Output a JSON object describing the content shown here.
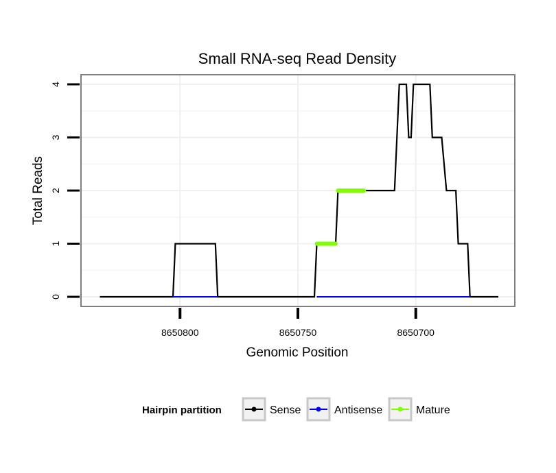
{
  "chart_data": {
    "type": "line",
    "title": "Small RNA-seq Read Density",
    "xlabel": "Genomic Position",
    "ylabel": "Total Reads",
    "xlim": [
      8650842,
      8650658
    ],
    "x_reversed": true,
    "ylim": [
      -0.18,
      4.18
    ],
    "x_ticks": [
      8650800,
      8650750,
      8650700
    ],
    "x_tick_labels": [
      "8650800",
      "8650750",
      "8650700"
    ],
    "y_ticks": [
      0,
      1,
      2,
      3,
      4
    ],
    "y_tick_labels": [
      "0",
      "1",
      "2",
      "3",
      "4"
    ],
    "grid": true,
    "legend": {
      "title": "Hairpin partition",
      "position": "bottom",
      "entries": [
        "Sense",
        "Antisense",
        "Mature"
      ]
    },
    "series": [
      {
        "name": "Sense",
        "color": "#000000",
        "points": [
          [
            8650834,
            0
          ],
          [
            8650803,
            0
          ],
          [
            8650802,
            1
          ],
          [
            8650785,
            1
          ],
          [
            8650784,
            0
          ],
          [
            8650743,
            0
          ],
          [
            8650742,
            1
          ],
          [
            8650734,
            1
          ],
          [
            8650733,
            2
          ],
          [
            8650709,
            2
          ],
          [
            8650707,
            4
          ],
          [
            8650704,
            4
          ],
          [
            8650703,
            3
          ],
          [
            8650702,
            3
          ],
          [
            8650701,
            4
          ],
          [
            8650694,
            4
          ],
          [
            8650693,
            3
          ],
          [
            8650689,
            3
          ],
          [
            8650687,
            2
          ],
          [
            8650683,
            2
          ],
          [
            8650682,
            1
          ],
          [
            8650678,
            1
          ],
          [
            8650677,
            0
          ],
          [
            8650665,
            0
          ]
        ]
      },
      {
        "name": "Antisense",
        "color": "#0000ff",
        "points": [
          [
            8650803,
            0
          ],
          [
            8650784,
            0
          ],
          [
            8650742,
            0
          ],
          [
            8650677,
            0
          ]
        ]
      },
      {
        "name": "Mature",
        "color": "#7fff00",
        "segments": [
          [
            [
              8650742,
              1
            ],
            [
              8650734,
              1
            ]
          ],
          [
            [
              8650733,
              2
            ],
            [
              8650722,
              2
            ]
          ]
        ]
      }
    ]
  }
}
